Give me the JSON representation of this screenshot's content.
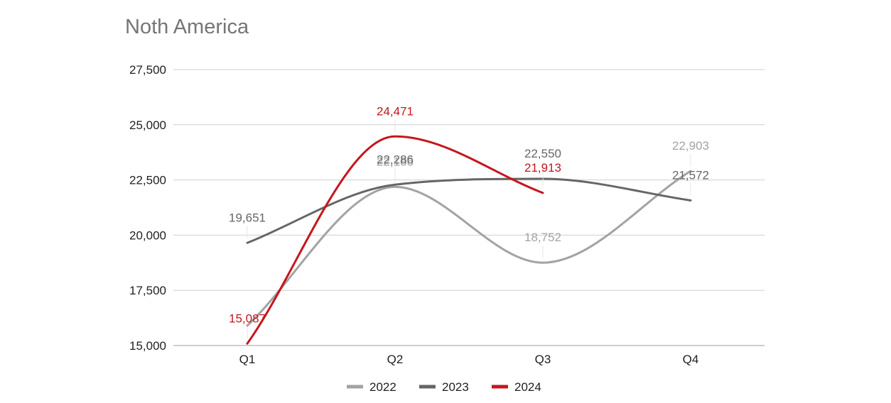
{
  "chart_data": {
    "type": "line",
    "smooth": true,
    "title": "Noth America",
    "categories": [
      "Q1",
      "Q2",
      "Q3",
      "Q4"
    ],
    "ylim": [
      15000,
      27500
    ],
    "yticks": [
      15000,
      17500,
      20000,
      22500,
      25000,
      27500
    ],
    "ytick_labels": [
      "15,000",
      "17,500",
      "20,000",
      "22,500",
      "25,000",
      "27,500"
    ],
    "grid": true,
    "legend_position": "bottom",
    "series": [
      {
        "name": "2022",
        "color": "#a3a3a3",
        "values": [
          15900,
          22186,
          18752,
          22903
        ],
        "labels": [
          "",
          "22,186",
          "18,752",
          "22,903"
        ]
      },
      {
        "name": "2023",
        "color": "#666666",
        "values": [
          19651,
          22286,
          22550,
          21572
        ],
        "labels": [
          "19,651",
          "22,286",
          "22,550",
          "21,572"
        ]
      },
      {
        "name": "2024",
        "color": "#c5161d",
        "values": [
          15087,
          24471,
          21913,
          null
        ],
        "labels": [
          "15,087",
          "24,471",
          "21,913",
          ""
        ]
      }
    ]
  }
}
